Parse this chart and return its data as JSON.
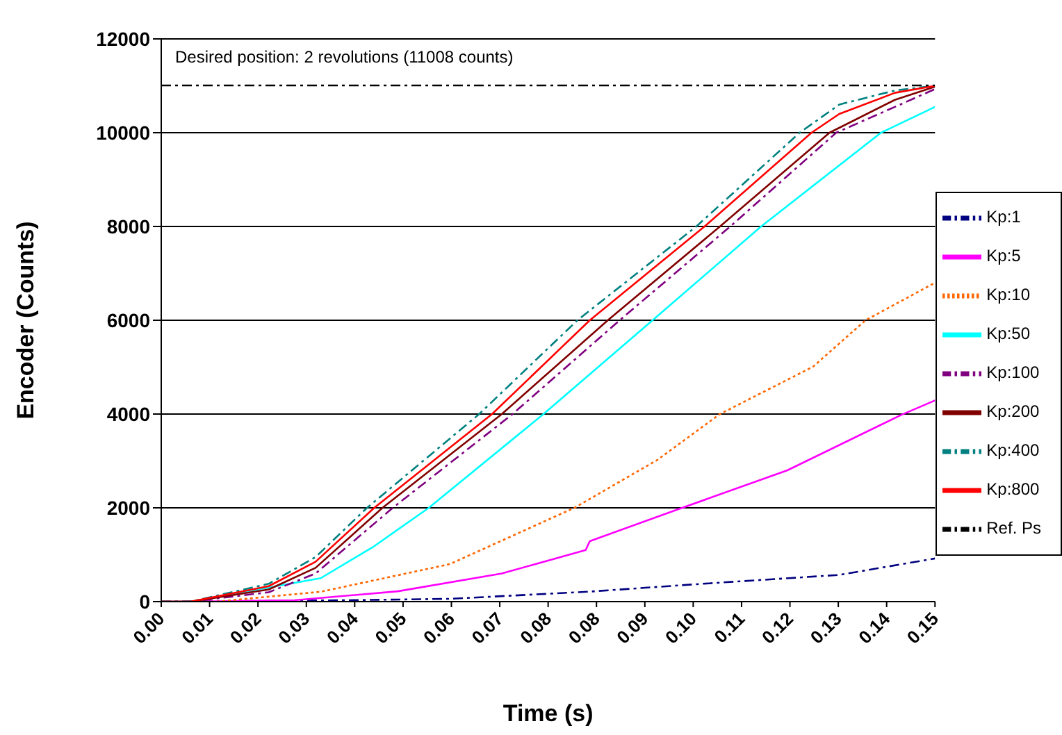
{
  "chart_data": {
    "type": "line",
    "xlabel": "Time (s)",
    "ylabel": "Encoder (Counts)",
    "annotations": [
      "Desired position: 2 revolutions (11008 counts)"
    ],
    "xlim": [
      0,
      0.1504
    ],
    "xticks": [
      {
        "value": 0,
        "label": "0.00"
      },
      {
        "value": 0.0094,
        "label": "0.01"
      },
      {
        "value": 0.0188,
        "label": "0.02"
      },
      {
        "value": 0.0282,
        "label": "0.03"
      },
      {
        "value": 0.0376,
        "label": "0.04"
      },
      {
        "value": 0.047,
        "label": "0.05"
      },
      {
        "value": 0.0564,
        "label": "0.06"
      },
      {
        "value": 0.0658,
        "label": "0.07"
      },
      {
        "value": 0.0752,
        "label": "0.08"
      },
      {
        "value": 0.0846,
        "label": "0.08"
      },
      {
        "value": 0.094,
        "label": "0.09"
      },
      {
        "value": 0.1034,
        "label": "0.10"
      },
      {
        "value": 0.1128,
        "label": "0.11"
      },
      {
        "value": 0.1222,
        "label": "0.12"
      },
      {
        "value": 0.1316,
        "label": "0.13"
      },
      {
        "value": 0.141,
        "label": "0.14"
      },
      {
        "value": 0.1504,
        "label": "0.15"
      }
    ],
    "ylim": [
      0,
      12000
    ],
    "yticks": [
      0,
      2000,
      4000,
      6000,
      8000,
      10000,
      12000
    ],
    "grid": "y",
    "legend": "right",
    "marker": "none",
    "series": [
      {
        "name": "Kp:1",
        "color": "#000080",
        "line_style": "dashed",
        "x": [
          0,
          0.0365,
          0.0561,
          0.0828,
          0.1065,
          0.1318,
          0.1504
        ],
        "values": [
          0,
          30,
          60,
          210,
          390,
          570,
          920
        ]
      },
      {
        "name": "Kp:5",
        "color": "#ff00ff",
        "line_style": "solid",
        "x": [
          0,
          0.0057,
          0.0259,
          0.046,
          0.0662,
          0.0825,
          0.0833,
          0.1005,
          0.1217,
          0.1438,
          0.1504
        ],
        "values": [
          0,
          0,
          30,
          220,
          600,
          1100,
          1290,
          1970,
          2800,
          3980,
          4290
        ]
      },
      {
        "name": "Kp:10",
        "color": "#ff6600",
        "line_style": "dotted",
        "x": [
          0,
          0.0107,
          0.031,
          0.0561,
          0.0803,
          0.0964,
          0.1086,
          0.1267,
          0.1369,
          0.1504
        ],
        "values": [
          0,
          0,
          210,
          800,
          2000,
          3020,
          4000,
          5010,
          6000,
          6800
        ]
      },
      {
        "name": "Kp:50",
        "color": "#00ffff",
        "line_style": "solid",
        "x": [
          0,
          0.0057,
          0.031,
          0.0411,
          0.052,
          0.0743,
          0.0955,
          0.1166,
          0.1399,
          0.1504
        ],
        "values": [
          0,
          0,
          500,
          1160,
          2000,
          4000,
          6000,
          8000,
          10000,
          10550
        ]
      },
      {
        "name": "Kp:100",
        "color": "#800080",
        "line_style": "dashed",
        "x": [
          0,
          0.0057,
          0.0209,
          0.03,
          0.045,
          0.0683,
          0.0891,
          0.1106,
          0.1312,
          0.1426,
          0.1504
        ],
        "values": [
          0,
          0,
          200,
          600,
          2000,
          4000,
          6000,
          8000,
          10000,
          10550,
          10930
        ]
      },
      {
        "name": "Kp:200",
        "color": "#800000",
        "line_style": "solid",
        "x": [
          0,
          0.0057,
          0.0209,
          0.03,
          0.043,
          0.0662,
          0.0868,
          0.1086,
          0.1299,
          0.1426,
          0.1504
        ],
        "values": [
          0,
          0,
          260,
          720,
          2000,
          4000,
          6000,
          8000,
          10000,
          10700,
          10980
        ]
      },
      {
        "name": "Kp:400",
        "color": "#008080",
        "line_style": "dashed",
        "x": [
          0,
          0.0057,
          0.0209,
          0.03,
          0.04,
          0.0618,
          0.0809,
          0.104,
          0.1241,
          0.1318,
          0.1426,
          0.1504
        ],
        "values": [
          0,
          0,
          380,
          950,
          2000,
          4000,
          6000,
          8000,
          10000,
          10600,
          10900,
          11000
        ]
      },
      {
        "name": "Kp:800",
        "color": "#ff0000",
        "line_style": "solid",
        "x": [
          0,
          0.0057,
          0.0209,
          0.03,
          0.0414,
          0.0643,
          0.0833,
          0.1056,
          0.1264,
          0.1318,
          0.1426,
          0.1504
        ],
        "values": [
          0,
          0,
          330,
          850,
          2000,
          4000,
          6000,
          8000,
          10000,
          10400,
          10850,
          11000
        ]
      },
      {
        "name": "Ref. Ps",
        "color": "#000000",
        "line_style": "dashed",
        "x": [
          0,
          0.1504
        ],
        "values": [
          11008,
          11008
        ]
      }
    ]
  }
}
